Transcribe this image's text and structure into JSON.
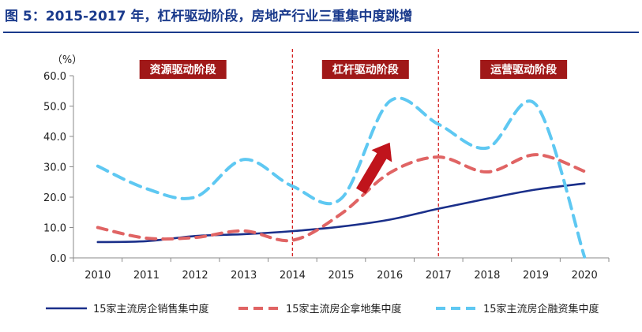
{
  "figure": {
    "title": "图 5：2015-2017 年，杠杆驱动阶段，房地产行业三重集中度跳增"
  },
  "chart_data": {
    "type": "line",
    "title": "图 5：2015-2017 年，杠杆驱动阶段，房地产行业三重集中度跳增",
    "ylabel": "（%）",
    "xlabel": "",
    "x": [
      "2010",
      "2011",
      "2012",
      "2013",
      "2014",
      "2015",
      "2016",
      "2017",
      "2018",
      "2019",
      "2020"
    ],
    "ylim": [
      0,
      60
    ],
    "yticks": [
      "0.0",
      "10.0",
      "20.0",
      "30.0",
      "40.0",
      "50.0",
      "60.0"
    ],
    "series": [
      {
        "name": "15家主流房企销售集中度",
        "style": "solid",
        "color": "#1a2f8a",
        "values": [
          5.2,
          5.5,
          7.2,
          7.8,
          8.8,
          10.3,
          12.6,
          16.2,
          19.5,
          22.5,
          24.5
        ]
      },
      {
        "name": "15家主流房企拿地集中度",
        "style": "dashed",
        "color": "#e06464",
        "values": [
          10.0,
          6.5,
          6.7,
          8.9,
          5.8,
          14.5,
          28.0,
          33.2,
          28.3,
          34.0,
          28.5
        ]
      },
      {
        "name": "15家主流房企融资集中度",
        "style": "dashed",
        "color": "#5ec8f2",
        "values": [
          30.2,
          22.8,
          20.0,
          32.4,
          23.6,
          19.5,
          51.6,
          44.0,
          36.2,
          50.5,
          0.3
        ]
      }
    ],
    "phases": [
      {
        "label": "资源驱动阶段",
        "color": "#a01818"
      },
      {
        "label": "杠杆驱动阶段",
        "color": "#a01818"
      },
      {
        "label": "运营驱动阶段",
        "color": "#a01818"
      }
    ],
    "dividers": [
      "2014",
      "2017"
    ],
    "divider_color": "#d42020",
    "annotation_arrow": {
      "from": [
        "2015",
        22
      ],
      "to": [
        "2016.2",
        38
      ],
      "color": "#c0141c"
    },
    "legend_position": "bottom"
  }
}
